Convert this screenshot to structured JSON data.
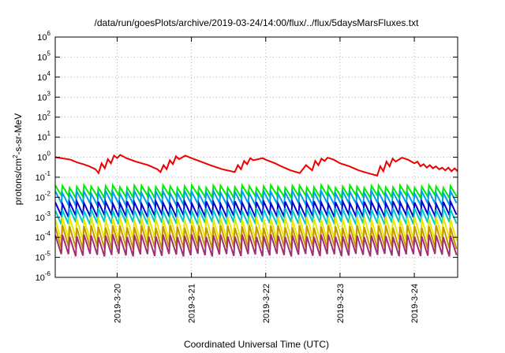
{
  "chart_data": {
    "type": "line",
    "title": "/data/run/goesPlots/archive/2019-03-24/14:00/flux/../flux/5daysMarsFluxes.txt",
    "xlabel": "Coordinated Universal Time (UTC)",
    "ylabel_parts": {
      "base": "protons/cm",
      "sup": "2",
      "rest": "-s-sr-MeV"
    },
    "y_scale": "log",
    "ylim_exp": [
      -6,
      6
    ],
    "y_tick_exponents": [
      -6,
      -5,
      -4,
      -3,
      -2,
      -1,
      0,
      1,
      2,
      3,
      4,
      5,
      6
    ],
    "x_start": "2019-03-19T04:00",
    "x_end": "2019-03-24T14:00",
    "x_ticks": [
      {
        "date": "2019-03-20T00:00",
        "label": "2019-3-20"
      },
      {
        "date": "2019-03-21T00:00",
        "label": "2019-3-21"
      },
      {
        "date": "2019-03-22T00:00",
        "label": "2019-3-22"
      },
      {
        "date": "2019-03-23T00:00",
        "label": "2019-3-23"
      },
      {
        "date": "2019-03-24T00:00",
        "label": "2019-3-24"
      }
    ],
    "grid": true,
    "legend": "none",
    "series": [
      {
        "color": "#ee0000",
        "x": [
          "2019-03-19T04:00",
          "2019-03-19T09:00",
          "2019-03-19T11:00",
          "2019-03-19T13:00",
          "2019-03-19T15:00",
          "2019-03-19T17:00",
          "2019-03-19T18:00",
          "2019-03-19T19:00",
          "2019-03-19T20:00",
          "2019-03-19T21:00",
          "2019-03-19T22:00",
          "2019-03-19T23:00",
          "2019-03-20T00:00",
          "2019-03-20T01:00",
          "2019-03-20T03:00",
          "2019-03-20T06:00",
          "2019-03-20T10:00",
          "2019-03-20T13:00",
          "2019-03-20T14:00",
          "2019-03-20T15:00",
          "2019-03-20T16:00",
          "2019-03-20T17:00",
          "2019-03-20T18:00",
          "2019-03-20T19:00",
          "2019-03-20T20:00",
          "2019-03-20T22:00",
          "2019-03-21T00:00",
          "2019-03-21T03:00",
          "2019-03-21T06:00",
          "2019-03-21T10:00",
          "2019-03-21T14:00",
          "2019-03-21T15:00",
          "2019-03-21T16:00",
          "2019-03-21T17:00",
          "2019-03-21T18:00",
          "2019-03-21T19:00",
          "2019-03-21T20:00",
          "2019-03-21T23:00",
          "2019-03-22T00:00",
          "2019-03-22T03:00",
          "2019-03-22T05:00",
          "2019-03-22T08:00",
          "2019-03-22T11:00",
          "2019-03-22T13:00",
          "2019-03-22T15:00",
          "2019-03-22T16:00",
          "2019-03-22T17:00",
          "2019-03-22T18:00",
          "2019-03-22T19:00",
          "2019-03-22T20:00",
          "2019-03-22T22:00",
          "2019-03-23T00:00",
          "2019-03-23T03:00",
          "2019-03-23T06:00",
          "2019-03-23T09:00",
          "2019-03-23T12:00",
          "2019-03-23T13:00",
          "2019-03-23T14:00",
          "2019-03-23T15:00",
          "2019-03-23T16:00",
          "2019-03-23T17:00",
          "2019-03-23T18:00",
          "2019-03-23T20:00",
          "2019-03-23T22:00",
          "2019-03-24T00:00",
          "2019-03-24T01:00",
          "2019-03-24T02:00",
          "2019-03-24T03:00",
          "2019-03-24T04:00",
          "2019-03-24T05:00",
          "2019-03-24T06:00",
          "2019-03-24T07:00",
          "2019-03-24T08:00",
          "2019-03-24T09:00",
          "2019-03-24T10:00",
          "2019-03-24T11:00",
          "2019-03-24T12:00",
          "2019-03-24T13:00",
          "2019-03-24T14:00"
        ],
        "y": [
          1.0,
          0.75,
          0.55,
          0.45,
          0.35,
          0.25,
          0.16,
          0.5,
          0.28,
          0.8,
          0.5,
          1.2,
          0.9,
          1.3,
          0.9,
          0.6,
          0.4,
          0.25,
          0.18,
          0.4,
          0.25,
          0.7,
          0.45,
          1.1,
          0.8,
          1.2,
          0.9,
          0.6,
          0.4,
          0.25,
          0.18,
          0.4,
          0.25,
          0.65,
          0.45,
          0.9,
          0.7,
          0.9,
          0.75,
          0.5,
          0.35,
          0.22,
          0.16,
          0.4,
          0.22,
          0.65,
          0.4,
          0.85,
          0.65,
          0.95,
          0.75,
          0.5,
          0.35,
          0.22,
          0.16,
          0.12,
          0.35,
          0.2,
          0.6,
          0.35,
          0.85,
          0.6,
          0.95,
          0.75,
          0.5,
          0.6,
          0.35,
          0.45,
          0.3,
          0.4,
          0.28,
          0.35,
          0.25,
          0.3,
          0.22,
          0.3,
          0.2,
          0.28,
          0.2
        ]
      },
      {
        "color": "#00ee00",
        "profile": {
          "high": 0.035,
          "low": 0.011,
          "steps": 56
        }
      },
      {
        "color": "#009ee8",
        "profile": {
          "high": 0.018,
          "low": 0.0045,
          "steps": 56
        }
      },
      {
        "color": "#0000cc",
        "profile": {
          "high": 0.0055,
          "low": 0.0012,
          "steps": 56
        }
      },
      {
        "color": "#00c8c8",
        "profile": {
          "high": 0.0025,
          "low": 0.0005,
          "steps": 56
        }
      },
      {
        "color": "#e8e800",
        "profile": {
          "high": 0.0009,
          "low": 8e-05,
          "steps": 56
        }
      },
      {
        "color": "#c89600",
        "profile": {
          "high": 0.00035,
          "low": 3e-05,
          "steps": 56
        }
      },
      {
        "color": "#a03070",
        "profile": {
          "high": 0.00012,
          "low": 1.3e-05,
          "steps": 56
        }
      }
    ]
  }
}
